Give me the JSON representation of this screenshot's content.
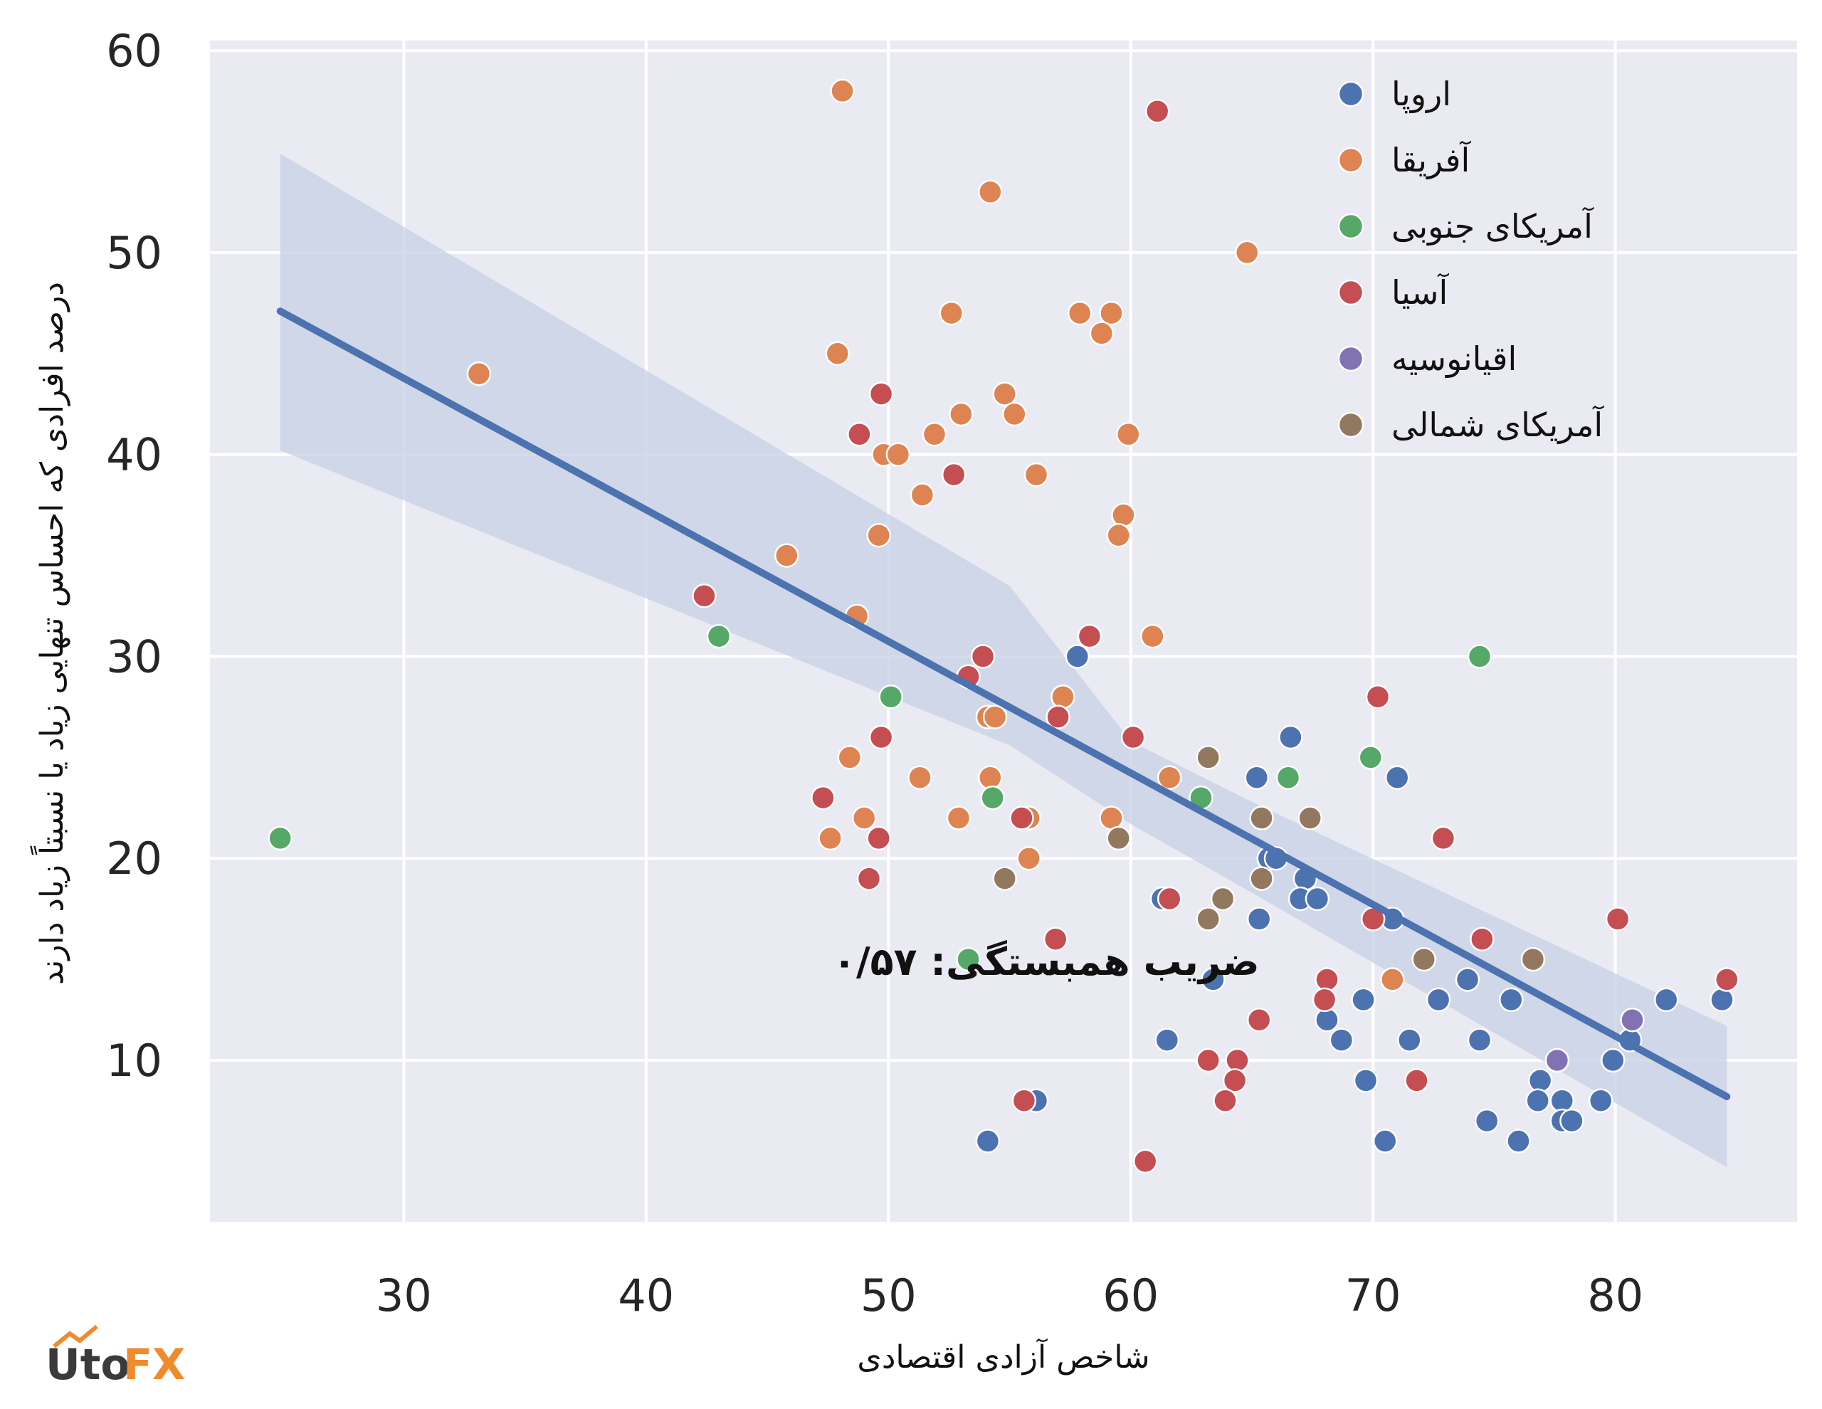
{
  "chart_data": {
    "type": "scatter",
    "xlabel": "شاخص آزادی اقتصادی",
    "ylabel": "درصد افرادی که احساس تنهایی زیاد یا نسبتاً زیاد دارند",
    "xlim": [
      22,
      87.5
    ],
    "ylim": [
      2,
      60.5
    ],
    "xticks": [
      "30",
      "40",
      "50",
      "60",
      "70",
      "80"
    ],
    "yticks": [
      "10",
      "20",
      "30",
      "40",
      "50",
      "60"
    ],
    "annotation": "ضریب همبستگی: ۰/۵۷",
    "legend_position": "top-right",
    "grid": true,
    "colors": {
      "background": "#eaeaf2",
      "grid": "#ffffff",
      "regression": "#4c72b0",
      "band": "#c6d0e4"
    },
    "regression": {
      "x": [
        24.9,
        84.6
      ],
      "y": [
        47.1,
        8.2
      ],
      "band_upper": [
        [
          24.9,
          54.9
        ],
        [
          55,
          33.5
        ],
        [
          60,
          25.8
        ],
        [
          65,
          22.8
        ],
        [
          84.6,
          11.7
        ]
      ],
      "band_lower": [
        [
          84.6,
          4.7
        ],
        [
          65,
          18.3
        ],
        [
          60,
          21.7
        ],
        [
          55,
          25.6
        ],
        [
          24.9,
          40.2
        ]
      ]
    },
    "series": [
      {
        "name": "اروپا",
        "color": "#4c72b0",
        "points": [
          [
            57.8,
            30
          ],
          [
            66.6,
            26
          ],
          [
            65.2,
            24
          ],
          [
            71,
            24
          ],
          [
            65.7,
            20
          ],
          [
            66,
            20
          ],
          [
            67.2,
            19
          ],
          [
            67,
            18
          ],
          [
            67.7,
            18
          ],
          [
            61.3,
            18
          ],
          [
            65.3,
            17
          ],
          [
            70.8,
            17
          ],
          [
            63.4,
            14
          ],
          [
            73.9,
            14
          ],
          [
            69.6,
            13
          ],
          [
            72.7,
            13
          ],
          [
            75.7,
            13
          ],
          [
            82.1,
            13
          ],
          [
            84.4,
            13
          ],
          [
            68.1,
            12
          ],
          [
            61.5,
            11
          ],
          [
            68.7,
            11
          ],
          [
            71.5,
            11
          ],
          [
            74.4,
            11
          ],
          [
            80.6,
            11
          ],
          [
            79.9,
            10
          ],
          [
            69.7,
            9
          ],
          [
            76.9,
            9
          ],
          [
            56.1,
            8
          ],
          [
            76.8,
            8
          ],
          [
            77.8,
            8
          ],
          [
            79.4,
            8
          ],
          [
            77.8,
            7
          ],
          [
            78.2,
            7
          ],
          [
            74.7,
            7
          ],
          [
            54.1,
            6
          ],
          [
            70.5,
            6
          ],
          [
            76,
            6
          ]
        ]
      },
      {
        "name": "آفریقا",
        "color": "#dd8452",
        "points": [
          [
            48.1,
            58
          ],
          [
            54.2,
            53
          ],
          [
            64.8,
            50
          ],
          [
            33.1,
            44
          ],
          [
            52.6,
            47
          ],
          [
            57.9,
            47
          ],
          [
            59.2,
            47
          ],
          [
            47.9,
            45
          ],
          [
            58.8,
            46
          ],
          [
            54.8,
            43
          ],
          [
            53,
            42
          ],
          [
            55.2,
            42
          ],
          [
            51.9,
            41
          ],
          [
            59.9,
            41
          ],
          [
            49.8,
            40
          ],
          [
            50.4,
            40
          ],
          [
            56.1,
            39
          ],
          [
            51.4,
            38
          ],
          [
            59.7,
            37
          ],
          [
            49.6,
            36
          ],
          [
            59.5,
            36
          ],
          [
            45.8,
            35
          ],
          [
            48.7,
            32
          ],
          [
            60.9,
            31
          ],
          [
            57.2,
            28
          ],
          [
            54.1,
            27
          ],
          [
            54.4,
            27
          ],
          [
            48.4,
            25
          ],
          [
            51.3,
            24
          ],
          [
            54.2,
            24
          ],
          [
            61.6,
            24
          ],
          [
            49,
            22
          ],
          [
            52.9,
            22
          ],
          [
            55.8,
            22
          ],
          [
            59.2,
            22
          ],
          [
            47.6,
            21
          ],
          [
            55.8,
            20
          ],
          [
            70.8,
            14
          ]
        ]
      },
      {
        "name": "آمریکای جنوبی",
        "color": "#55a868",
        "points": [
          [
            24.9,
            21
          ],
          [
            43,
            31
          ],
          [
            50.1,
            28
          ],
          [
            74.4,
            30
          ],
          [
            69.9,
            25
          ],
          [
            66.5,
            24
          ],
          [
            54.3,
            23
          ],
          [
            62.9,
            23
          ],
          [
            53.3,
            15
          ]
        ]
      },
      {
        "name": "آسیا",
        "color": "#c44e52",
        "points": [
          [
            61.1,
            57
          ],
          [
            49.7,
            43
          ],
          [
            48.8,
            41
          ],
          [
            52.7,
            39
          ],
          [
            42.4,
            33
          ],
          [
            58.3,
            31
          ],
          [
            53.9,
            30
          ],
          [
            53.3,
            29
          ],
          [
            57,
            27
          ],
          [
            60.1,
            26
          ],
          [
            49.7,
            26
          ],
          [
            47.3,
            23
          ],
          [
            55.5,
            22
          ],
          [
            72.9,
            21
          ],
          [
            49.6,
            21
          ],
          [
            49.2,
            19
          ],
          [
            61.6,
            18
          ],
          [
            70,
            17
          ],
          [
            80.1,
            17
          ],
          [
            74.5,
            16
          ],
          [
            56.9,
            16
          ],
          [
            68.1,
            14
          ],
          [
            84.6,
            14
          ],
          [
            68,
            13
          ],
          [
            65.3,
            12
          ],
          [
            63.2,
            10
          ],
          [
            64.4,
            10
          ],
          [
            64.3,
            9
          ],
          [
            71.8,
            9
          ],
          [
            55.6,
            8
          ],
          [
            63.9,
            8
          ],
          [
            60.6,
            5
          ],
          [
            70.2,
            28
          ]
        ]
      },
      {
        "name": "اقیانوسیه",
        "color": "#8172b3",
        "points": [
          [
            80.7,
            12
          ],
          [
            77.6,
            10
          ]
        ]
      },
      {
        "name": "آمریکای شمالی",
        "color": "#937860",
        "points": [
          [
            63.2,
            25
          ],
          [
            65.4,
            22
          ],
          [
            67.4,
            22
          ],
          [
            59.5,
            21
          ],
          [
            65.4,
            19
          ],
          [
            54.8,
            19
          ],
          [
            63.8,
            18
          ],
          [
            63.2,
            17
          ],
          [
            72.1,
            15
          ],
          [
            76.6,
            15
          ]
        ]
      }
    ]
  },
  "logo": {
    "part1": "Uto",
    "part2": "FX"
  }
}
